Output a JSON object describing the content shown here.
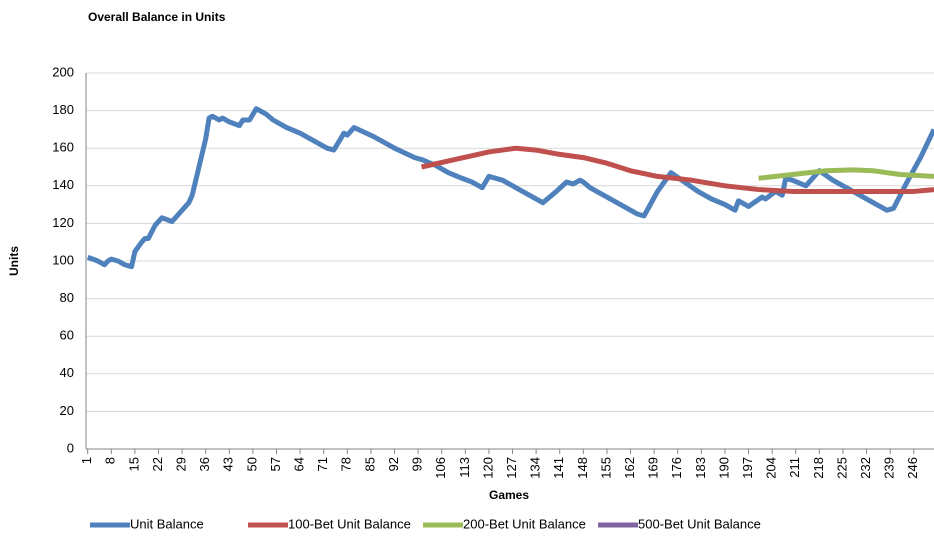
{
  "chart_data": {
    "type": "line",
    "title": "Overall Balance in Units",
    "xlabel": "Games",
    "ylabel": "Units",
    "xlim": [
      0.5,
      252
    ],
    "ylim": [
      0,
      200
    ],
    "yticks": [
      0,
      20,
      40,
      60,
      80,
      100,
      120,
      140,
      160,
      180,
      200
    ],
    "grid": true,
    "legend": "bottom",
    "xticks": [
      1,
      8,
      15,
      22,
      29,
      36,
      43,
      50,
      57,
      64,
      71,
      78,
      85,
      92,
      99,
      106,
      113,
      120,
      127,
      134,
      141,
      148,
      155,
      162,
      169,
      176,
      183,
      190,
      197,
      204,
      211,
      218,
      225,
      232,
      239,
      246
    ],
    "series": [
      {
        "name": "Unit Balance",
        "color": "#4f81bd",
        "x": [
          1,
          4,
          6,
          7,
          8,
          10,
          12,
          14,
          15,
          17,
          18,
          19,
          21,
          23,
          26,
          29,
          31,
          32,
          34,
          36,
          37,
          38,
          40,
          41,
          43,
          46,
          47,
          49,
          50,
          51,
          54,
          56,
          58,
          60,
          64,
          68,
          72,
          74,
          77,
          78,
          80,
          86,
          92,
          98,
          100,
          104,
          108,
          112,
          115,
          118,
          120,
          124,
          128,
          132,
          136,
          140,
          143,
          145,
          147,
          148,
          150,
          155,
          160,
          164,
          166,
          170,
          174,
          178,
          182,
          186,
          190,
          193,
          194,
          197,
          201,
          202,
          205,
          207,
          208,
          210,
          214,
          218,
          222,
          226,
          230,
          234,
          238,
          240,
          244,
          248,
          252
        ],
        "values": [
          102,
          100,
          98,
          100,
          101,
          100,
          98,
          97,
          105,
          110,
          112,
          112,
          119,
          123,
          121,
          127,
          131,
          135,
          150,
          165,
          176,
          177,
          175,
          176,
          174,
          172,
          175,
          175,
          178,
          181,
          178,
          175,
          173,
          171,
          168,
          164,
          160,
          159,
          168,
          167,
          171,
          166,
          160,
          155,
          154,
          151,
          147,
          144,
          142,
          139,
          145,
          143,
          139,
          135,
          131,
          137,
          142,
          141,
          143,
          142,
          139,
          134,
          129,
          125,
          124,
          137,
          147,
          142,
          137,
          133,
          130,
          127,
          132,
          129,
          134,
          133,
          137,
          135,
          144,
          143,
          140,
          148,
          143,
          139,
          135,
          131,
          127,
          128,
          142,
          155,
          170
        ]
      },
      {
        "name": "100-Bet Unit Balance",
        "color": "#c0504d",
        "x": [
          100,
          110,
          120,
          128,
          134,
          140,
          148,
          155,
          162,
          170,
          180,
          190,
          200,
          210,
          220,
          230,
          240,
          246,
          252
        ],
        "values": [
          150,
          154,
          158,
          160,
          159,
          157,
          155,
          152,
          148,
          145,
          143,
          140,
          138,
          137,
          137,
          137,
          137,
          137,
          138
        ]
      },
      {
        "name": "200-Bet Unit Balance",
        "color": "#9bbb59",
        "x": [
          200,
          210,
          220,
          228,
          234,
          242,
          252
        ],
        "values": [
          144,
          146,
          148,
          148.5,
          148,
          146,
          145
        ]
      },
      {
        "name": "500-Bet Unit Balance",
        "color": "#8064a2",
        "x": [],
        "values": []
      }
    ]
  }
}
